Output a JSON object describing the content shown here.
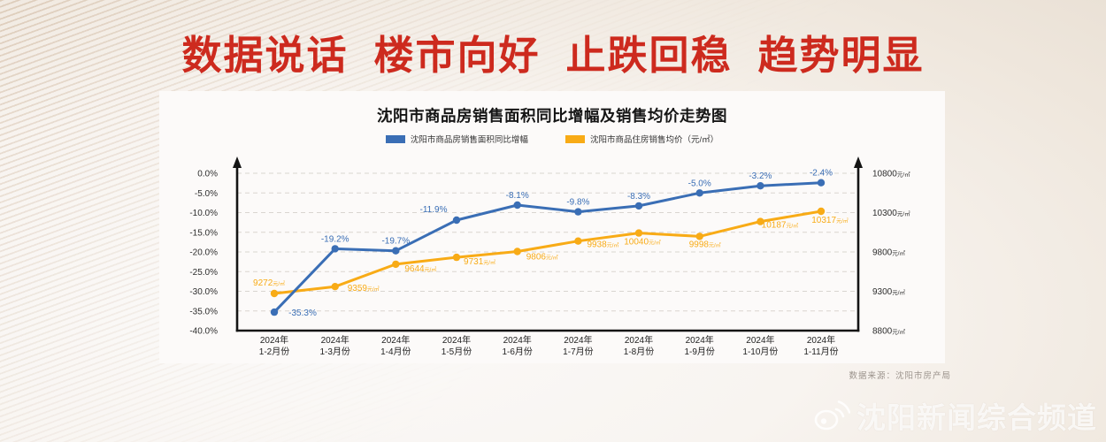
{
  "page": {
    "headline": "数据说话  楼市向好  止跌回稳  趋势明显",
    "headline_color": "#cd2a1e"
  },
  "chart_data": {
    "type": "line",
    "title": "沈阳市商品房销售面积同比增幅及销售均价走势图",
    "legend_position": "top",
    "grid": true,
    "categories": [
      [
        "2024年",
        "1-2月份"
      ],
      [
        "2024年",
        "1-3月份"
      ],
      [
        "2024年",
        "1-4月份"
      ],
      [
        "2024年",
        "1-5月份"
      ],
      [
        "2024年",
        "1-6月份"
      ],
      [
        "2024年",
        "1-7月份"
      ],
      [
        "2024年",
        "1-8月份"
      ],
      [
        "2024年",
        "1-9月份"
      ],
      [
        "2024年",
        "1-10月份"
      ],
      [
        "2024年",
        "1-11月份"
      ]
    ],
    "series": [
      {
        "name": "沈阳市商品房销售面积同比增幅",
        "axis": "left",
        "color": "#3a6eb5",
        "values": [
          -35.3,
          -19.2,
          -19.7,
          -11.9,
          -8.1,
          -9.8,
          -8.3,
          -5.0,
          -3.2,
          -2.4
        ],
        "labels": [
          "-35.3%",
          "-19.2%",
          "-19.7%",
          "-11.9%",
          "-8.1%",
          "-9.8%",
          "-8.3%",
          "-5.0%",
          "-3.2%",
          "-2.4%"
        ]
      },
      {
        "name": "沈阳市商品住房销售均价（元/㎡）",
        "axis": "right",
        "color": "#f8ab16",
        "values": [
          9272,
          9359,
          9644,
          9731,
          9806,
          9938,
          10040,
          9998,
          10187,
          10317
        ],
        "unit": "元/㎡"
      }
    ],
    "left_axis": {
      "min": -40,
      "max": 0,
      "ticks": [
        "0.0%",
        "-5.0%",
        "-10.0%",
        "-15.0%",
        "-20.0%",
        "-25.0%",
        "-30.0%",
        "-35.0%",
        "-40.0%"
      ]
    },
    "right_axis": {
      "min": 8800,
      "max": 10800,
      "ticks": [
        "10800",
        "10300",
        "9800",
        "9300",
        "8800"
      ],
      "unit": "元/㎡"
    }
  },
  "source_note": "数据来源：沈阳市房产局",
  "watermark": {
    "icon": "weibo-icon",
    "text": "沈阳新闻综合频道"
  }
}
